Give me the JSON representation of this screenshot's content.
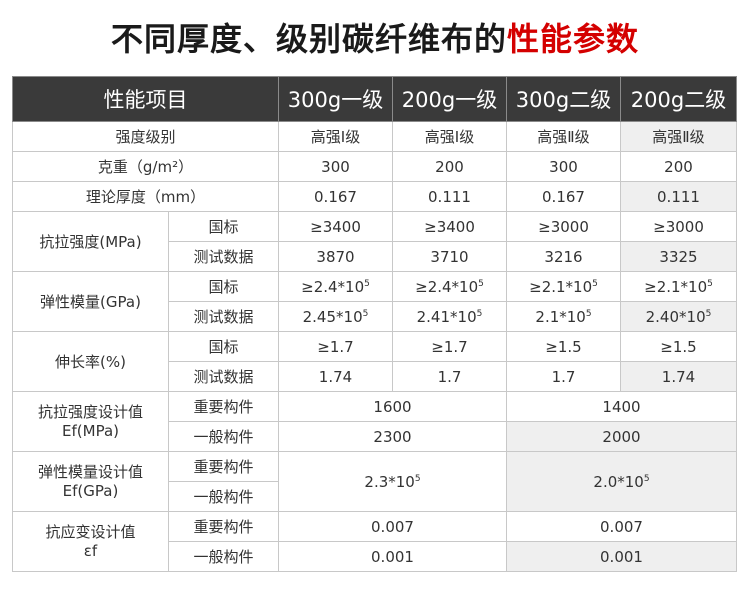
{
  "title": {
    "main": "不同厚度、级别碳纤维布的",
    "highlight": "性能参数"
  },
  "header": {
    "item": "性能项目",
    "cols": [
      "300g一级",
      "200g一级",
      "300g二级",
      "200g二级"
    ]
  },
  "rows": {
    "grade": {
      "label": "强度级别",
      "values": [
        "高强Ⅰ级",
        "高强Ⅰ级",
        "高强Ⅱ级",
        "高强Ⅱ级"
      ]
    },
    "weight": {
      "label": "克重（g/m²）",
      "values": [
        "300",
        "200",
        "300",
        "200"
      ]
    },
    "thickness": {
      "label": "理论厚度（mm）",
      "values": [
        "0.167",
        "0.111",
        "0.167",
        "0.111"
      ]
    },
    "tensile": {
      "label": "抗拉强度(MPa)",
      "std_label": "国标",
      "test_label": "测试数据",
      "std": [
        "≥3400",
        "≥3400",
        "≥3000",
        "≥3000"
      ],
      "test": [
        "3870",
        "3710",
        "3216",
        "3325"
      ]
    },
    "modulus": {
      "label": "弹性模量(GPa)",
      "std_label": "国标",
      "test_label": "测试数据",
      "std_base": [
        "≥2.4*10",
        "≥2.4*10",
        "≥2.1*10",
        "≥2.1*10"
      ],
      "test_base": [
        "2.45*10",
        "2.41*10",
        "2.1*10",
        "2.40*10"
      ],
      "exp": "5"
    },
    "elongation": {
      "label": "伸长率(%)",
      "std_label": "国标",
      "test_label": "测试数据",
      "std": [
        "≥1.7",
        "≥1.7",
        "≥1.5",
        "≥1.5"
      ],
      "test": [
        "1.74",
        "1.7",
        "1.7",
        "1.74"
      ]
    },
    "design_strength": {
      "label1": "抗拉强度设计值",
      "label2": "Ef(MPa)",
      "sub1": "重要构件",
      "sub2": "一般构件",
      "grade1_important": "1600",
      "grade2_important": "1400",
      "grade1_general": "2300",
      "grade2_general": "2000"
    },
    "design_modulus": {
      "label1": "弹性模量设计值",
      "label2": "Ef(GPa)",
      "sub1": "重要构件",
      "sub2": "一般构件",
      "grade1_base": "2.3*10",
      "grade2_base": "2.0*10",
      "exp": "5"
    },
    "design_strain": {
      "label1": "抗应变设计值",
      "label2": "εf",
      "sub1": "重要构件",
      "sub2": "一般构件",
      "grade1_important": "0.007",
      "grade2_important": "0.007",
      "grade1_general": "0.001",
      "grade2_general": "0.001"
    }
  }
}
